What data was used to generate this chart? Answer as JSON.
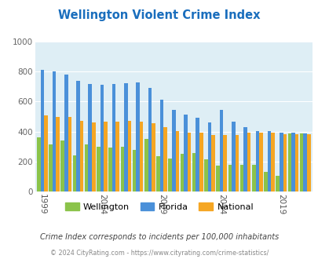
{
  "title": "Wellington Violent Crime Index",
  "subtitle": "Crime Index corresponds to incidents per 100,000 inhabitants",
  "footer": "© 2024 CityRating.com - https://www.cityrating.com/crime-statistics/",
  "years": [
    1999,
    2000,
    2001,
    2002,
    2003,
    2004,
    2005,
    2006,
    2007,
    2008,
    2009,
    2010,
    2011,
    2012,
    2013,
    2014,
    2015,
    2016,
    2017,
    2018,
    2019,
    2020,
    2021
  ],
  "wellington": [
    360,
    315,
    340,
    240,
    315,
    300,
    295,
    300,
    280,
    350,
    235,
    220,
    250,
    255,
    215,
    175,
    180,
    180,
    180,
    130,
    105,
    390,
    390
  ],
  "florida": [
    810,
    800,
    780,
    740,
    715,
    710,
    715,
    720,
    725,
    690,
    610,
    545,
    515,
    490,
    460,
    545,
    465,
    430,
    405,
    405,
    395,
    395,
    390
  ],
  "national": [
    510,
    500,
    500,
    470,
    460,
    465,
    465,
    470,
    465,
    455,
    430,
    405,
    395,
    395,
    375,
    375,
    375,
    395,
    395,
    395,
    380,
    385,
    385
  ],
  "bar_colors": {
    "wellington": "#8bc34a",
    "florida": "#4a90d9",
    "national": "#f5a623"
  },
  "ylim": [
    0,
    1000
  ],
  "yticks": [
    0,
    200,
    400,
    600,
    800,
    1000
  ],
  "xtick_years": [
    1999,
    2004,
    2009,
    2014,
    2019
  ],
  "bg_color": "#deeef5",
  "title_color": "#1a6ebd",
  "subtitle_color": "#444444",
  "footer_color": "#888888",
  "grid_color": "#ffffff",
  "fig_width": 4.06,
  "fig_height": 3.3,
  "dpi": 100
}
